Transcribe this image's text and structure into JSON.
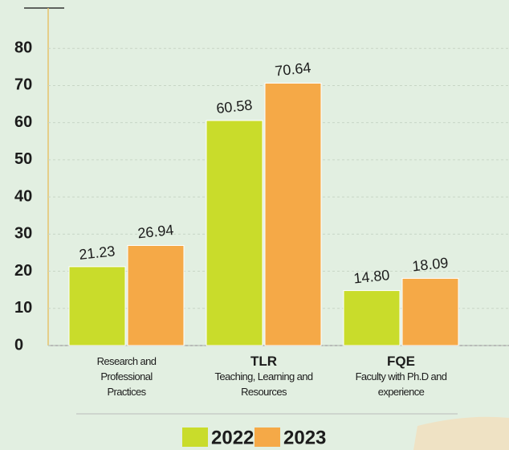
{
  "chart_data": {
    "type": "bar",
    "categories": [
      "Research and Professional Practices",
      "TLR",
      "FQE"
    ],
    "category_subtitles": [
      null,
      "Teaching, Learning and Resources",
      "Faculty with Ph.D and experience"
    ],
    "series": [
      {
        "name": "2022",
        "color": "#c9dc2b",
        "values": [
          21.23,
          60.58,
          14.8
        ],
        "value_labels": [
          "21.23",
          "60.58",
          "14.80"
        ]
      },
      {
        "name": "2023",
        "color": "#f5a947",
        "values": [
          26.94,
          70.64,
          18.09
        ],
        "value_labels": [
          "26.94",
          "70.64",
          "18.09"
        ]
      }
    ],
    "ylim": [
      0,
      90
    ],
    "yticks": [
      0,
      10,
      20,
      30,
      40,
      50,
      60,
      70,
      80
    ],
    "grid": true,
    "legend": "bottom"
  }
}
